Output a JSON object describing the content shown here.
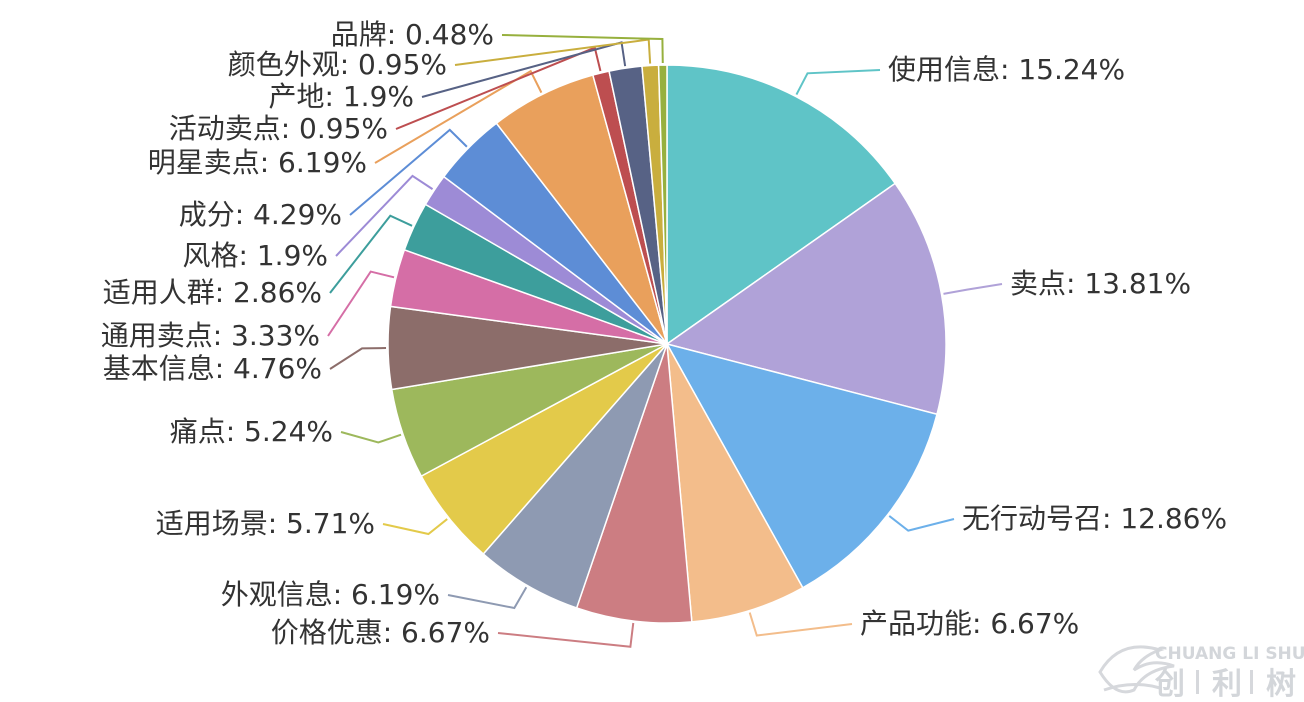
{
  "chart_data": {
    "type": "pie",
    "start_angle_deg": 90,
    "direction": "clockwise",
    "slices": [
      {
        "name": "使用信息",
        "label": "使用信息: 15.24%",
        "value": 15.24,
        "color": "#5fc4c7"
      },
      {
        "name": "卖点",
        "label": "卖点: 13.81%",
        "value": 13.81,
        "color": "#b0a2d8"
      },
      {
        "name": "无行动号召",
        "label": "无行动号召: 12.86%",
        "value": 12.86,
        "color": "#6cb0ea"
      },
      {
        "name": "产品功能",
        "label": "产品功能: 6.67%",
        "value": 6.67,
        "color": "#f3bd8b"
      },
      {
        "name": "价格优惠",
        "label": "价格优惠: 6.67%",
        "value": 6.67,
        "color": "#cc7d82"
      },
      {
        "name": "外观信息",
        "label": "外观信息: 6.19%",
        "value": 6.19,
        "color": "#8e9ab2"
      },
      {
        "name": "适用场景",
        "label": "适用场景: 5.71%",
        "value": 5.71,
        "color": "#e3ca4a"
      },
      {
        "name": "痛点",
        "label": "痛点: 5.24%",
        "value": 5.24,
        "color": "#9db85c"
      },
      {
        "name": "基本信息",
        "label": "基本信息: 4.76%",
        "value": 4.76,
        "color": "#8c6d6a"
      },
      {
        "name": "通用卖点",
        "label": "通用卖点: 3.33%",
        "value": 3.33,
        "color": "#d56ea6"
      },
      {
        "name": "适用人群",
        "label": "适用人群: 2.86%",
        "value": 2.86,
        "color": "#3d9e9c"
      },
      {
        "name": "风格",
        "label": "风格: 1.9%",
        "value": 1.9,
        "color": "#9d8bd6"
      },
      {
        "name": "成分",
        "label": "成分: 4.29%",
        "value": 4.29,
        "color": "#5d8dd6"
      },
      {
        "name": "明星卖点",
        "label": "明星卖点: 6.19%",
        "value": 6.19,
        "color": "#e9a05c"
      },
      {
        "name": "活动卖点",
        "label": "活动卖点: 0.95%",
        "value": 0.95,
        "color": "#bd4e50"
      },
      {
        "name": "产地",
        "label": "产地: 1.9%",
        "value": 1.9,
        "color": "#576285"
      },
      {
        "name": "颜色外观",
        "label": "颜色外观: 0.95%",
        "value": 0.95,
        "color": "#c9ae3e"
      },
      {
        "name": "品牌",
        "label": "品牌: 0.48%",
        "value": 0.48,
        "color": "#97b03e"
      }
    ]
  },
  "watermark": {
    "latin": "CHUANG LI SHU",
    "chars": [
      "创",
      "利",
      "树"
    ]
  }
}
